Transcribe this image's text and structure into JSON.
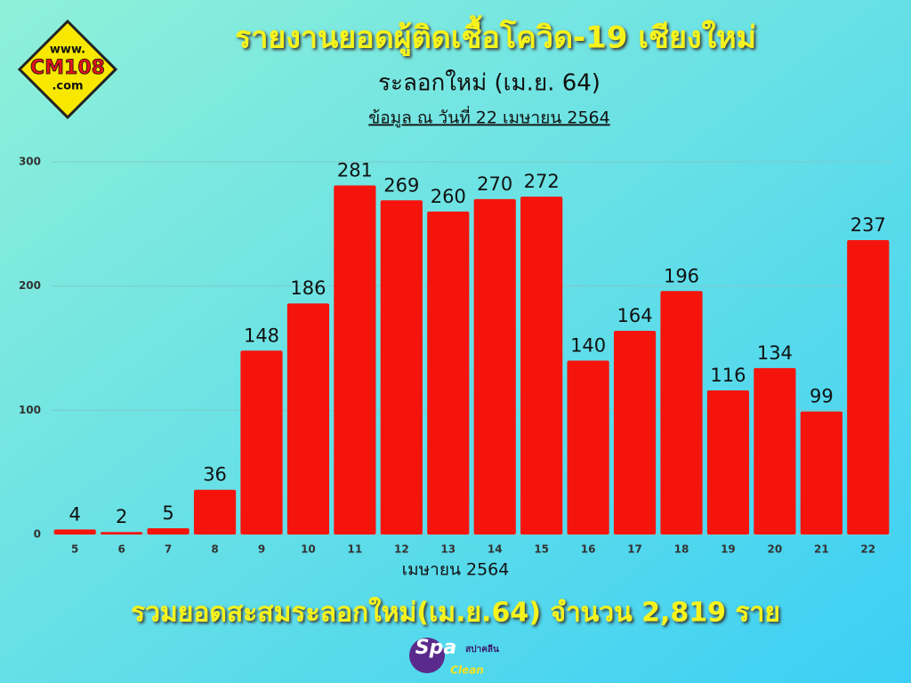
{
  "chart_data": {
    "type": "bar",
    "title": "รายงานยอดผู้ติดเชื้อโควิด-19 เชียงใหม่",
    "subtitle": "ระลอกใหม่ (เม.ย. 64)",
    "note": "ข้อมูล ณ วันที่ 22 เมษายน 2564",
    "x_label": "เมษายน 2564",
    "footer": "รวมยอดสะสมระลอกใหม่(เม.ย.64) จำนวน 2,819 ราย",
    "categories": [
      "5",
      "6",
      "7",
      "8",
      "9",
      "10",
      "11",
      "12",
      "13",
      "14",
      "15",
      "16",
      "17",
      "18",
      "19",
      "20",
      "21",
      "22"
    ],
    "values": [
      4,
      2,
      5,
      36,
      148,
      186,
      281,
      269,
      260,
      270,
      272,
      140,
      164,
      196,
      116,
      134,
      99,
      237
    ],
    "color": "#f5140c",
    "ylim": [
      0,
      300
    ],
    "yticks": [
      0,
      100,
      200,
      300
    ],
    "grid": true
  },
  "logos": {
    "cm108": [
      "www.",
      "CM108",
      ".com"
    ],
    "spa": [
      "Spa",
      "สปาคลีน",
      "Clean"
    ]
  }
}
